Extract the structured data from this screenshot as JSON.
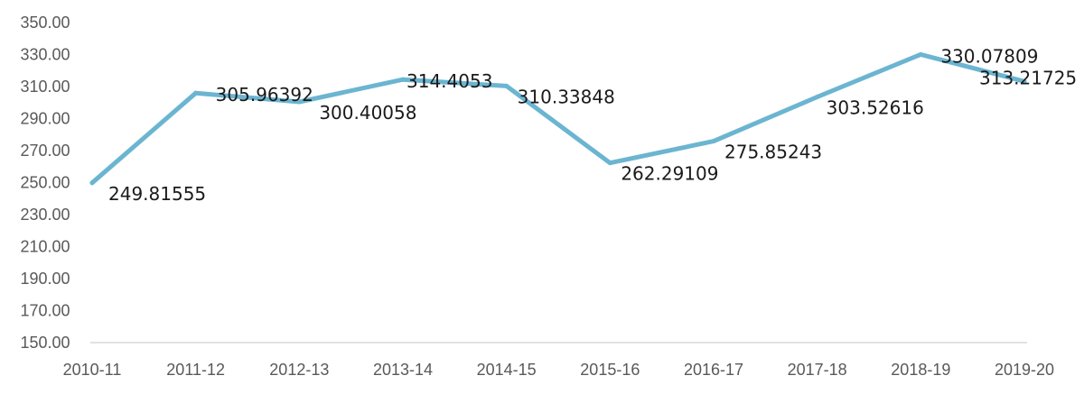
{
  "chart_data": {
    "type": "line",
    "title": "",
    "xlabel": "",
    "ylabel": "",
    "categories": [
      "2010-11",
      "2011-12",
      "2012-13",
      "2013-14",
      "2014-15",
      "2015-16",
      "2016-17",
      "2017-18",
      "2018-19",
      "2019-20"
    ],
    "series": [
      {
        "values": [
          249.81555,
          305.96392,
          300.40058,
          314.4053,
          310.33848,
          262.29109,
          275.85243,
          303.52616,
          330.07809,
          313.21725
        ],
        "data_labels": [
          "249.81555",
          "305.96392",
          "300.40058",
          "314.4053",
          "310.33848",
          "262.29109",
          "275.85243",
          "303.52616",
          "330.07809",
          "313.21725"
        ],
        "color": "#6bb5d1"
      }
    ],
    "yticks": [
      "150.00",
      "170.00",
      "190.00",
      "210.00",
      "230.00",
      "250.00",
      "270.00",
      "290.00",
      "310.00",
      "330.00",
      "350.00"
    ],
    "ylim": [
      150,
      350
    ],
    "grid": false,
    "legend": "none",
    "axis_color": "#d9d9d9"
  }
}
